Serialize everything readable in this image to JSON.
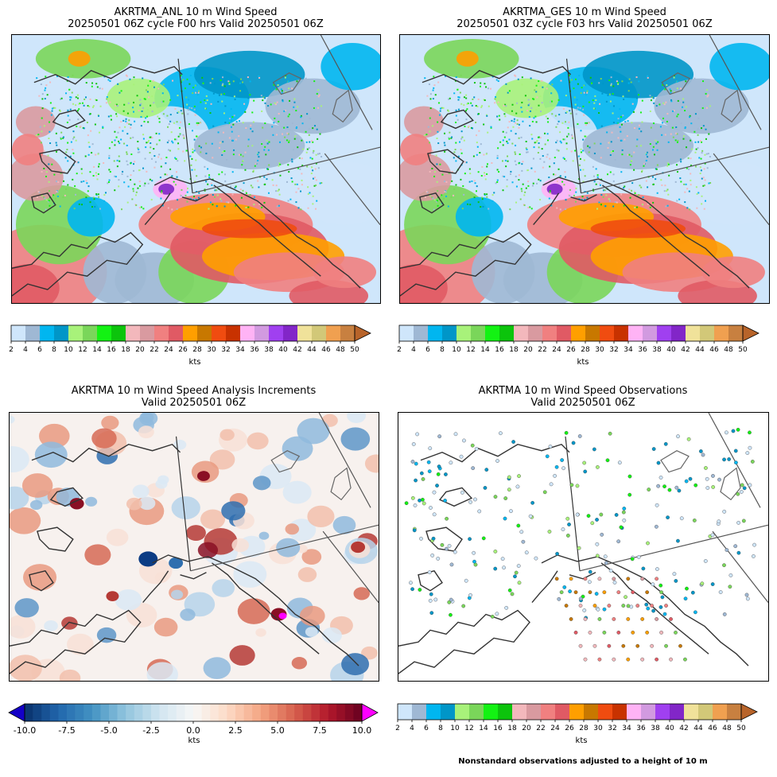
{
  "panels": [
    {
      "id": "anl",
      "title_line1": "AKRTMA_ANL 10 m Wind Speed",
      "title_line2": "20250501 06Z cycle F00 hrs Valid 20250501 06Z",
      "colorbar_unit": "kts"
    },
    {
      "id": "ges",
      "title_line1": "AKRTMA_GES 10 m Wind Speed",
      "title_line2": "20250501 03Z cycle F03 hrs Valid 20250501 06Z",
      "colorbar_unit": "kts"
    },
    {
      "id": "inc",
      "title_line1": "AKRTMA 10 m Wind Speed Analysis Increments",
      "title_line2": "Valid 20250501 06Z",
      "colorbar_unit": "kts"
    },
    {
      "id": "obs",
      "title_line1": "AKRTMA 10 m Wind Speed Observations",
      "title_line2": "Valid 20250501 06Z",
      "colorbar_unit": "kts"
    }
  ],
  "wind_colorbar": {
    "ticks": [
      "2",
      "4",
      "6",
      "8",
      "10",
      "12",
      "14",
      "16",
      "18",
      "20",
      "22",
      "24",
      "26",
      "28",
      "30",
      "32",
      "34",
      "36",
      "38",
      "40",
      "42",
      "44",
      "46",
      "48",
      "50"
    ],
    "colors": [
      "#cfe6fb",
      "#9fb8d4",
      "#00b6f0",
      "#0096c8",
      "#a8f27a",
      "#7ad65a",
      "#13f213",
      "#0cc40c",
      "#f3b8bc",
      "#d99aa0",
      "#f08080",
      "#e05a64",
      "#ff9f00",
      "#c87800",
      "#f04c10",
      "#c83200",
      "#ffb3f5",
      "#d29ae0",
      "#a040f0",
      "#8226c8",
      "#f0e29a",
      "#d2c878",
      "#f0a050",
      "#c88040"
    ],
    "extend_color": "#b8642a"
  },
  "increment_colorbar": {
    "ticks": [
      "-10.0",
      "-7.5",
      "-5.0",
      "-2.5",
      "0.0",
      "2.5",
      "5.0",
      "7.5",
      "10.0"
    ],
    "min_extend_color": "#1400c8",
    "max_extend_color": "#ff00ff"
  },
  "footnote": "Nonstandard observations adjusted to a height of 10 m"
}
